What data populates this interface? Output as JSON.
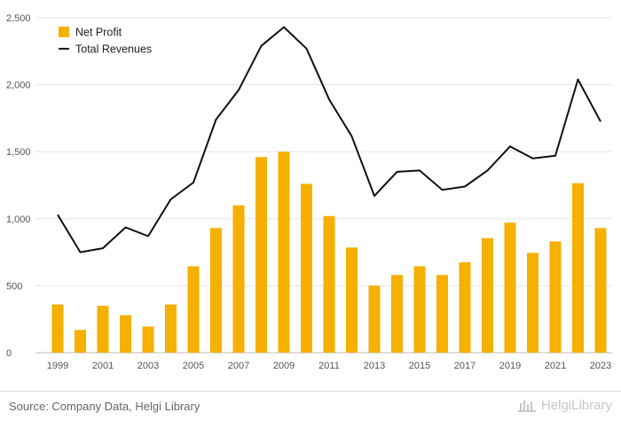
{
  "chart_data": {
    "type": "bar+line",
    "title": "",
    "xlabel": "",
    "ylabel": "",
    "ylim": [
      0,
      2500
    ],
    "y_ticks": [
      0,
      500,
      1000,
      1500,
      2000,
      2500
    ],
    "y_tick_labels": [
      "0",
      "500",
      "1,000",
      "1,500",
      "2,000",
      "2,500"
    ],
    "categories": [
      "1999",
      "2000",
      "2001",
      "2002",
      "2003",
      "2004",
      "2005",
      "2006",
      "2007",
      "2008",
      "2009",
      "2010",
      "2011",
      "2012",
      "2013",
      "2014",
      "2015",
      "2016",
      "2017",
      "2018",
      "2019",
      "2020",
      "2021",
      "2022",
      "2023"
    ],
    "x_tick_labels": [
      "1999",
      "",
      "2001",
      "",
      "2003",
      "",
      "2005",
      "",
      "2007",
      "",
      "2009",
      "",
      "2011",
      "",
      "2013",
      "",
      "2015",
      "",
      "2017",
      "",
      "2019",
      "",
      "2021",
      "",
      "2023"
    ],
    "series": [
      {
        "name": "Net Profit",
        "type": "bar",
        "color": "#f5b000",
        "values": [
          360,
          170,
          350,
          280,
          195,
          360,
          645,
          930,
          1100,
          1460,
          1500,
          1260,
          1020,
          785,
          500,
          580,
          645,
          580,
          675,
          855,
          970,
          745,
          830,
          1265,
          930
        ]
      },
      {
        "name": "Total Revenues",
        "type": "line",
        "color": "#111111",
        "values": [
          1030,
          750,
          780,
          935,
          870,
          1145,
          1270,
          1740,
          1960,
          2290,
          2430,
          2270,
          1890,
          1615,
          1170,
          1350,
          1360,
          1215,
          1240,
          1360,
          1540,
          1450,
          1470,
          2040,
          1725
        ]
      }
    ],
    "legend": {
      "position": "top-left",
      "entries": [
        "Net Profit",
        "Total Revenues"
      ]
    },
    "grid": {
      "horizontal": true,
      "vertical": false
    }
  },
  "footer": {
    "source": "Source: Company Data, Helgi Library",
    "brand": "HelgiLibrary"
  }
}
